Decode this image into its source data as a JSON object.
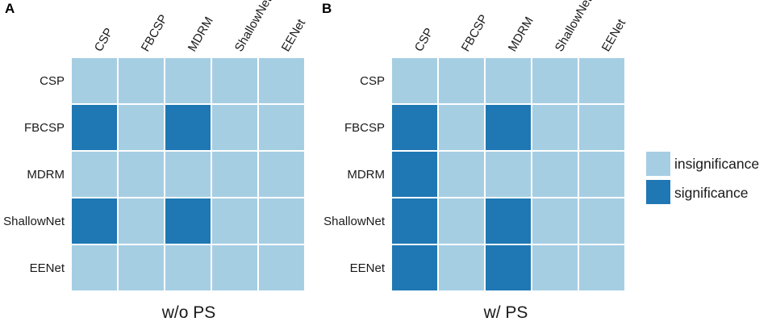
{
  "chart_data": [
    {
      "type": "heatmap",
      "panel_label": "A",
      "xlabel": "w/o PS",
      "columns": [
        "CSP",
        "FBCSP",
        "MDRM",
        "ShallowNet",
        "EENet"
      ],
      "rows": [
        "CSP",
        "FBCSP",
        "MDRM",
        "ShallowNet",
        "EENet"
      ],
      "values": [
        [
          0,
          0,
          0,
          0,
          0
        ],
        [
          1,
          0,
          1,
          0,
          0
        ],
        [
          0,
          0,
          0,
          0,
          0
        ],
        [
          1,
          0,
          1,
          0,
          0
        ],
        [
          0,
          0,
          0,
          0,
          0
        ]
      ]
    },
    {
      "type": "heatmap",
      "panel_label": "B",
      "xlabel": "w/ PS",
      "columns": [
        "CSP",
        "FBCSP",
        "MDRM",
        "ShallowNet",
        "EENet"
      ],
      "rows": [
        "CSP",
        "FBCSP",
        "MDRM",
        "ShallowNet",
        "EENet"
      ],
      "values": [
        [
          0,
          0,
          0,
          0,
          0
        ],
        [
          1,
          0,
          1,
          0,
          0
        ],
        [
          1,
          0,
          0,
          0,
          0
        ],
        [
          1,
          0,
          1,
          0,
          0
        ],
        [
          1,
          0,
          1,
          0,
          0
        ]
      ]
    }
  ],
  "legend": {
    "items": [
      {
        "label": "insignificance",
        "value": 0,
        "color": "#a6cee3"
      },
      {
        "label": "significance",
        "value": 1,
        "color": "#1f78b4"
      }
    ]
  },
  "colors": {
    "insignificance": "#a6cee3",
    "significance": "#1f78b4",
    "grid": "#ffffff"
  }
}
